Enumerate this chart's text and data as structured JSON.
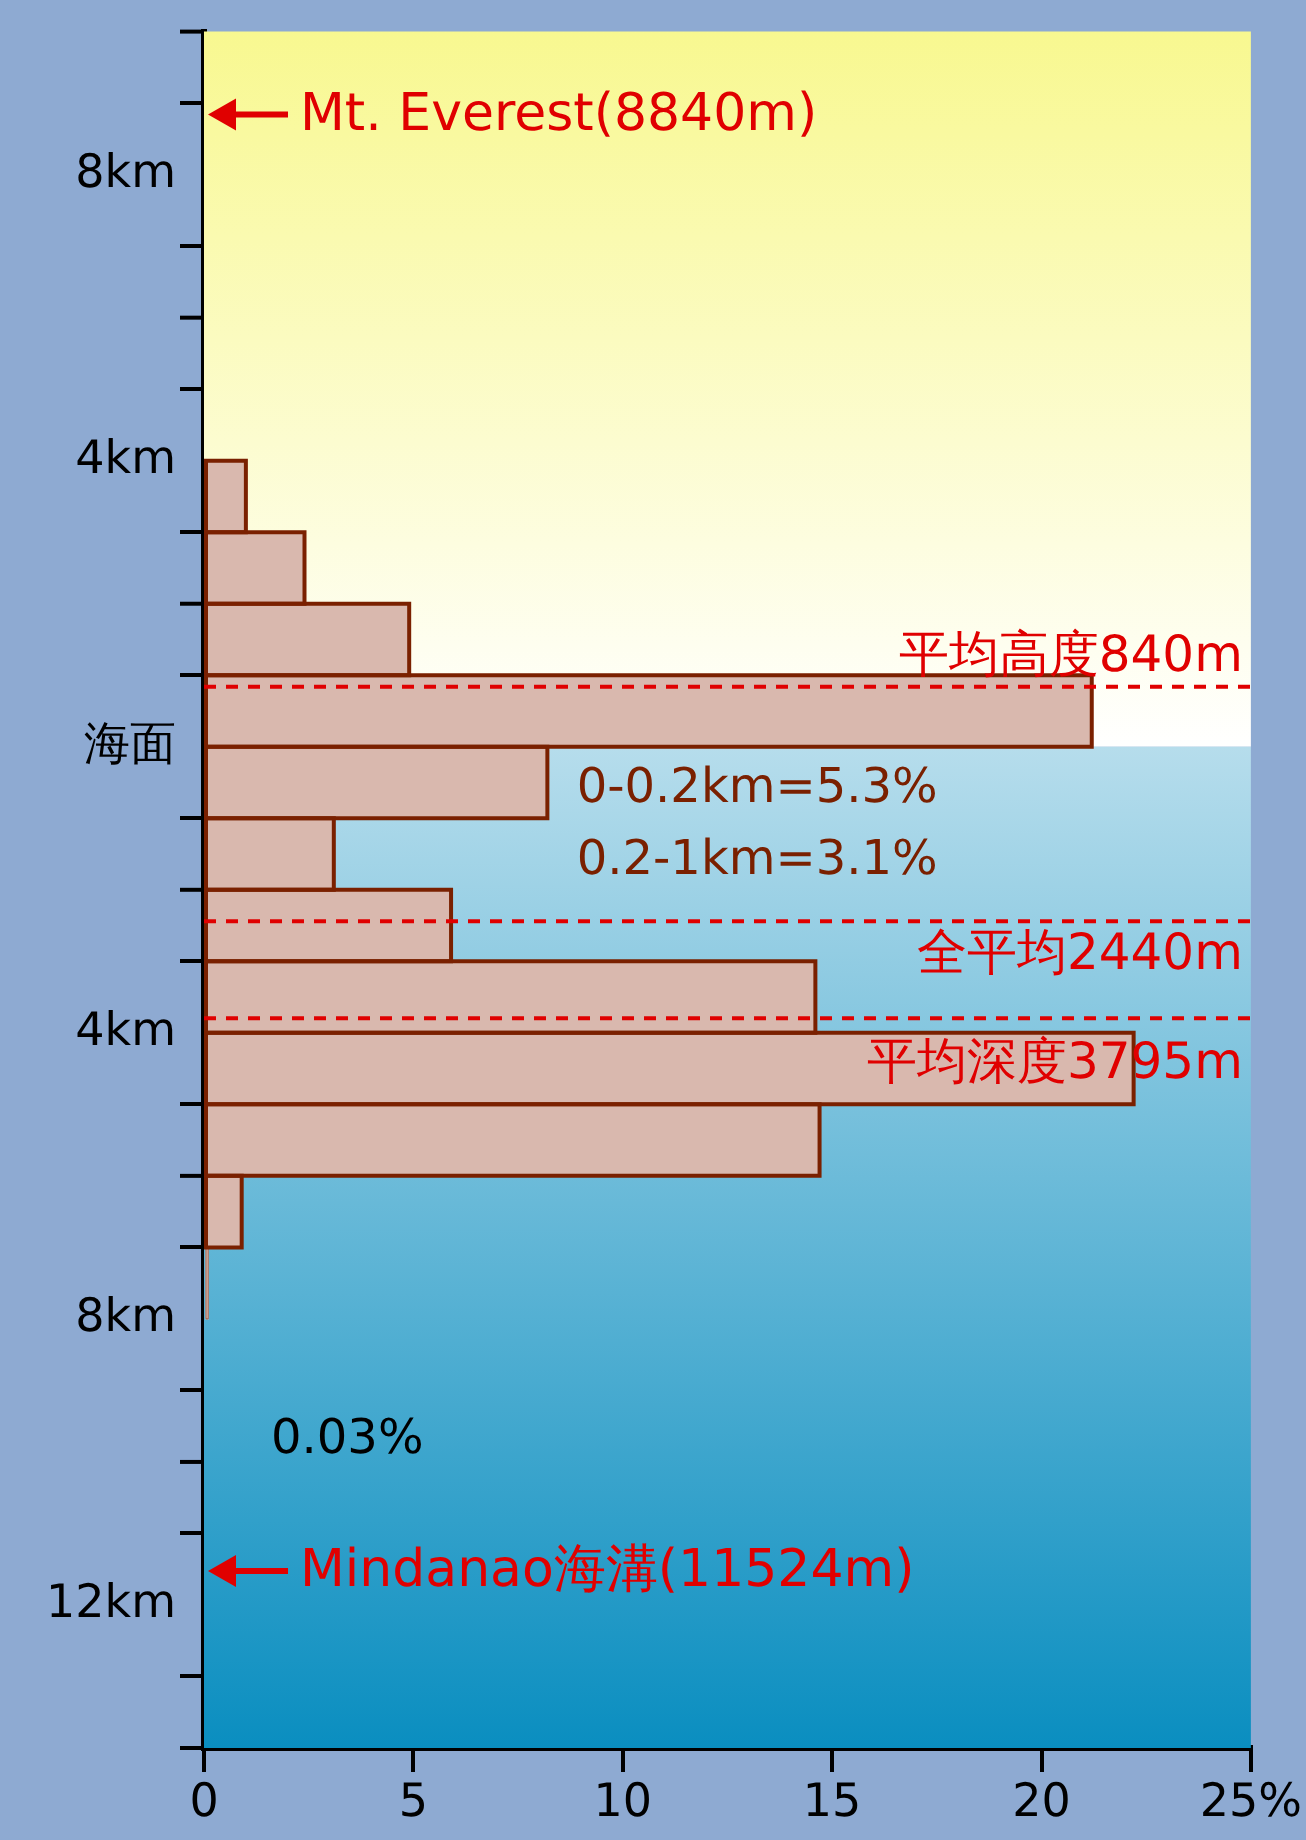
{
  "chart_data": {
    "type": "histogram",
    "orientation": "horizontal",
    "bins": [
      -8,
      -7,
      -6,
      -5,
      -4,
      -3,
      -2,
      -1,
      0,
      1,
      2,
      3,
      4
    ],
    "values": [
      0.1,
      0.9,
      14.7,
      22.2,
      14.6,
      5.9,
      3.1,
      8.2,
      21.2,
      4.9,
      2.4,
      1.0
    ],
    "color": "#d9b8ae",
    "xlim": [
      0,
      25
    ],
    "xticks": [
      0,
      5,
      10,
      15,
      20,
      {
        "value": 25,
        "label": "25%"
      }
    ],
    "ylim": [
      -14,
      10
    ],
    "yticks": [
      {
        "value": 10,
        "label": null
      },
      {
        "value": 8,
        "label": "8km"
      },
      {
        "value": 6,
        "label": null
      },
      {
        "value": 4,
        "label": "4km"
      },
      {
        "value": 2,
        "label": null
      },
      {
        "value": 0,
        "label": "海面"
      },
      {
        "value": -2,
        "label": null
      },
      {
        "value": -4,
        "label": "4km"
      },
      {
        "value": -6,
        "label": null
      },
      {
        "value": -8,
        "label": "8km"
      },
      {
        "value": -10,
        "label": null
      },
      {
        "value": -12,
        "label": "12km"
      },
      {
        "value": -14,
        "label": null
      }
    ],
    "grid": false,
    "legend": false,
    "bands": [
      {
        "axis": "y",
        "from": 0,
        "to": 10,
        "color": "#f8f890"
      },
      {
        "axis": "y",
        "from": -14,
        "to": 0,
        "color": "#0a8ec0"
      }
    ],
    "ref_lines": [
      {
        "axis": "y",
        "value": 0.84,
        "label": "平均高度840m",
        "color": "#e00000",
        "line_style": "dashed"
      },
      {
        "axis": "y",
        "value": -2.44,
        "label": "全平均2440m",
        "color": "#e00000",
        "line_style": "dashed"
      },
      {
        "axis": "y",
        "value": -3.795,
        "label": "平均深度3795m",
        "color": "#e00000",
        "line_style": "dashed"
      }
    ],
    "annotations": [
      {
        "text": "Mt. Everest(8840m)",
        "x": 0,
        "y": 8.84
      },
      {
        "text": "Mindanao海溝(11524m)",
        "x": 0,
        "y": -11.524
      },
      "0-0.2km=5.3%",
      "0.2-1km=3.1%",
      "0.03%"
    ]
  }
}
